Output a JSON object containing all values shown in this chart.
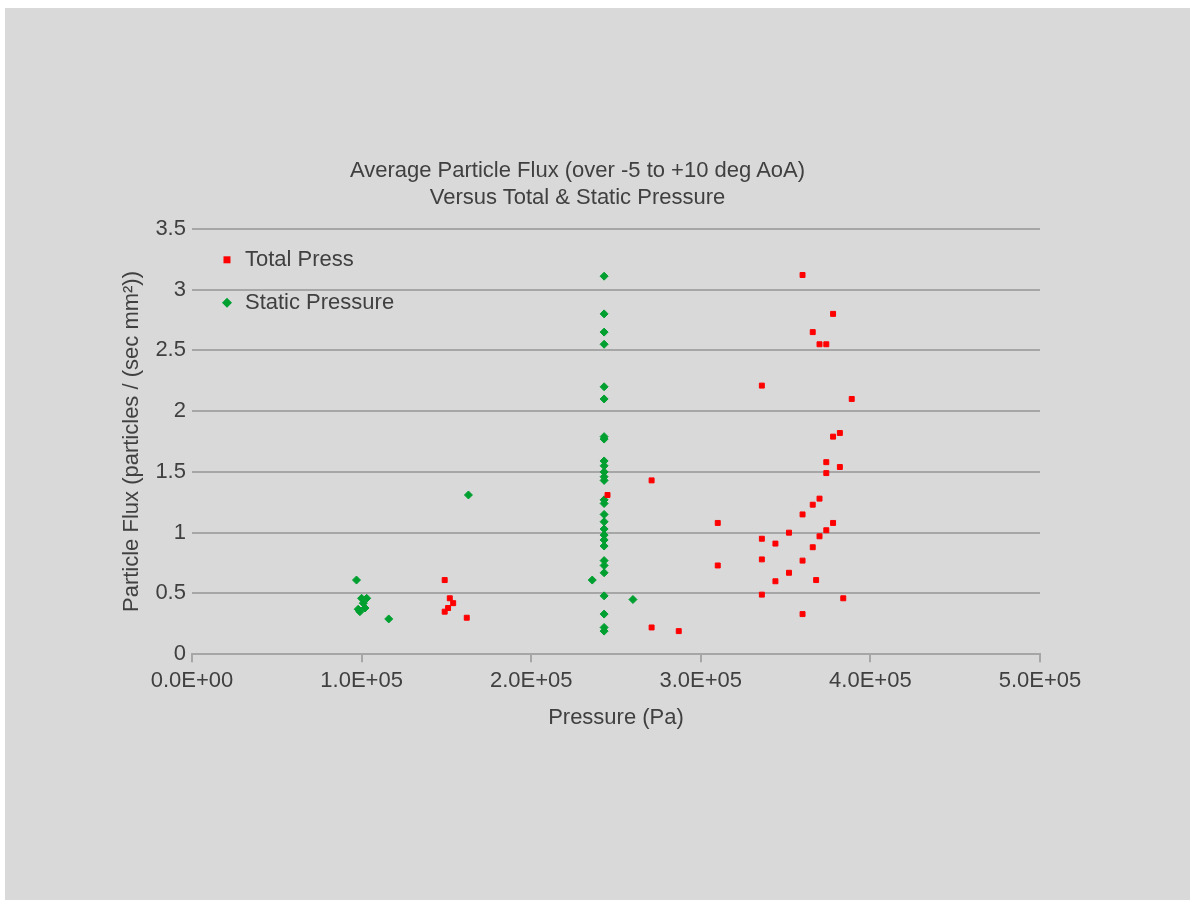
{
  "chart_data": {
    "type": "scatter",
    "title": [
      "Average Particle Flux (over -5 to +10 deg AoA)",
      "Versus Total & Static Pressure"
    ],
    "xlabel": "Pressure (Pa)",
    "ylabel": "Particle Flux (particles / (sec mm²))",
    "xlim": [
      0,
      500000
    ],
    "xticks": [
      {
        "value": 0,
        "label": "0.0E+00"
      },
      {
        "value": 100000,
        "label": "1.0E+05"
      },
      {
        "value": 200000,
        "label": "2.0E+05"
      },
      {
        "value": 300000,
        "label": "3.0E+05"
      },
      {
        "value": 400000,
        "label": "4.0E+05"
      },
      {
        "value": 500000,
        "label": "5.0E+05"
      }
    ],
    "ylim": [
      0,
      3.5
    ],
    "yticks": [
      0,
      0.5,
      1,
      1.5,
      2,
      2.5,
      3,
      3.5
    ],
    "grid": "y",
    "legend": "top left",
    "series": [
      {
        "name": "Total Press",
        "color": "#ff0000",
        "marker": "square",
        "x": [
          149000,
          152000,
          154000,
          151000,
          149000,
          162000,
          245000,
          336000,
          389000,
          382000,
          378000,
          374000,
          382000,
          374000,
          271000,
          370000,
          366000,
          360000,
          310000,
          378000,
          374000,
          352000,
          370000,
          336000,
          344000,
          366000,
          336000,
          360000,
          310000,
          352000,
          368000,
          344000,
          336000,
          384000,
          360000,
          271000,
          287000,
          360000,
          378000,
          366000,
          370000,
          374000
        ],
        "values": [
          0.61,
          0.46,
          0.42,
          0.38,
          0.35,
          0.3,
          1.31,
          2.21,
          2.1,
          1.82,
          1.79,
          1.58,
          1.54,
          1.49,
          1.43,
          1.28,
          1.23,
          1.15,
          1.08,
          1.08,
          1.02,
          1.0,
          0.97,
          0.95,
          0.91,
          0.88,
          0.78,
          0.77,
          0.73,
          0.67,
          0.61,
          0.6,
          0.49,
          0.46,
          0.33,
          0.22,
          0.19,
          3.12,
          2.8,
          2.65,
          2.55,
          2.55
        ]
      },
      {
        "name": "Static Pressure",
        "color": "#00a030",
        "marker": "diamond",
        "x": [
          97000,
          99000,
          101000,
          103000,
          100000,
          98000,
          102000,
          116000,
          163000,
          243000,
          243000,
          243000,
          243000,
          243000,
          243000,
          243000,
          243000,
          243000,
          243000,
          243000,
          243000,
          243000,
          243000,
          243000,
          243000,
          243000,
          243000,
          243000,
          243000,
          243000,
          243000,
          243000,
          236000,
          243000,
          243000,
          260000,
          243000,
          243000,
          243000
        ],
        "values": [
          0.61,
          0.35,
          0.42,
          0.46,
          0.46,
          0.37,
          0.38,
          0.29,
          1.31,
          3.11,
          2.8,
          2.65,
          2.55,
          2.2,
          2.1,
          1.79,
          1.77,
          1.59,
          1.55,
          1.5,
          1.46,
          1.43,
          1.27,
          1.24,
          1.15,
          1.09,
          1.03,
          0.98,
          0.94,
          0.89,
          0.77,
          0.73,
          0.61,
          0.67,
          0.48,
          0.45,
          0.33,
          0.22,
          0.19
        ]
      }
    ]
  }
}
